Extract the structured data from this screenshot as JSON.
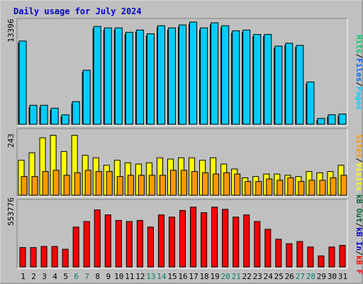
{
  "chart_data": [
    {
      "type": "bar",
      "title": "Daily usage for July 2024",
      "categories": [
        "1",
        "2",
        "3",
        "4",
        "5",
        "6",
        "7",
        "8",
        "9",
        "10",
        "11",
        "12",
        "13",
        "14",
        "15",
        "16",
        "17",
        "18",
        "19",
        "20",
        "21",
        "22",
        "23",
        "24",
        "25",
        "26",
        "27",
        "28",
        "29",
        "30",
        "31"
      ],
      "weekend_days": [
        "6",
        "7",
        "13",
        "14",
        "20",
        "21",
        "27",
        "28"
      ],
      "ylim": [
        0,
        13396
      ],
      "max_tick_label": "13396",
      "series": [
        {
          "name": "Pages",
          "color": "#00ccff",
          "values": [
            11400,
            2600,
            2600,
            2200,
            1300,
            3100,
            7400,
            13396,
            13200,
            13200,
            12600,
            12900,
            12400,
            13500,
            13200,
            13600,
            14000,
            13200,
            13900,
            13500,
            12800,
            12900,
            12300,
            12300,
            10700,
            11100,
            10800,
            5800,
            800,
            1300,
            1400
          ]
        },
        {
          "name": "Files",
          "color": "#0066ff",
          "values": [
            0,
            0,
            0,
            0,
            0,
            0,
            0,
            0,
            0,
            0,
            0,
            0,
            0,
            0,
            0,
            0,
            0,
            0,
            0,
            0,
            0,
            0,
            0,
            0,
            0,
            0,
            0,
            0,
            0,
            0,
            0
          ]
        },
        {
          "name": "Hits",
          "color": "#00cc66",
          "values": [
            0,
            0,
            0,
            0,
            0,
            0,
            0,
            0,
            0,
            0,
            0,
            0,
            0,
            0,
            0,
            0,
            0,
            0,
            0,
            0,
            0,
            0,
            0,
            0,
            0,
            0,
            0,
            0,
            0,
            0,
            0
          ]
        }
      ]
    },
    {
      "type": "bar",
      "categories": [
        "1",
        "2",
        "3",
        "4",
        "5",
        "6",
        "7",
        "8",
        "9",
        "10",
        "11",
        "12",
        "13",
        "14",
        "15",
        "16",
        "17",
        "18",
        "19",
        "20",
        "21",
        "22",
        "23",
        "24",
        "25",
        "26",
        "27",
        "28",
        "29",
        "30",
        "31"
      ],
      "ylim": [
        0,
        243
      ],
      "max_tick_label": "243",
      "series": [
        {
          "name": "Visits",
          "color": "#ffff00",
          "values": [
            140,
            170,
            230,
            240,
            175,
            240,
            160,
            150,
            120,
            140,
            130,
            125,
            130,
            150,
            145,
            150,
            150,
            140,
            150,
            125,
            105,
            70,
            75,
            85,
            85,
            80,
            75,
            95,
            90,
            95,
            120
          ]
        },
        {
          "name": "Sites",
          "color": "#ff9900",
          "values": [
            75,
            75,
            95,
            100,
            80,
            90,
            100,
            95,
            95,
            75,
            80,
            80,
            80,
            80,
            100,
            100,
            95,
            90,
            85,
            90,
            85,
            55,
            55,
            65,
            60,
            70,
            55,
            60,
            60,
            70,
            80
          ]
        }
      ]
    },
    {
      "type": "bar",
      "categories": [
        "1",
        "2",
        "3",
        "4",
        "5",
        "6",
        "7",
        "8",
        "9",
        "10",
        "11",
        "12",
        "13",
        "14",
        "15",
        "16",
        "17",
        "18",
        "19",
        "20",
        "21",
        "22",
        "23",
        "24",
        "25",
        "26",
        "27",
        "28",
        "29",
        "30",
        "31"
      ],
      "ylim": [
        0,
        553776
      ],
      "max_tick_label": "553776",
      "series": [
        {
          "name": "kB F",
          "color": "#ff0000",
          "values": [
            175000,
            175000,
            185000,
            185000,
            160000,
            360000,
            410000,
            515000,
            470000,
            420000,
            410000,
            420000,
            360000,
            470000,
            450000,
            510000,
            540000,
            490000,
            540000,
            520000,
            450000,
            470000,
            410000,
            340000,
            250000,
            210000,
            230000,
            180000,
            100000,
            180000,
            195000
          ]
        },
        {
          "name": "kB In",
          "color": "#0000cc",
          "values": [
            0,
            0,
            0,
            0,
            0,
            0,
            0,
            0,
            0,
            0,
            0,
            0,
            0,
            0,
            0,
            0,
            0,
            0,
            0,
            0,
            0,
            0,
            0,
            0,
            0,
            0,
            0,
            0,
            0,
            0,
            0
          ]
        },
        {
          "name": "kB Out",
          "color": "#006633",
          "values": [
            0,
            0,
            0,
            0,
            0,
            0,
            0,
            0,
            0,
            0,
            0,
            0,
            0,
            0,
            0,
            0,
            0,
            0,
            0,
            0,
            0,
            0,
            0,
            0,
            0,
            0,
            0,
            0,
            0,
            0,
            0
          ]
        }
      ]
    }
  ],
  "legend_sep": "/"
}
